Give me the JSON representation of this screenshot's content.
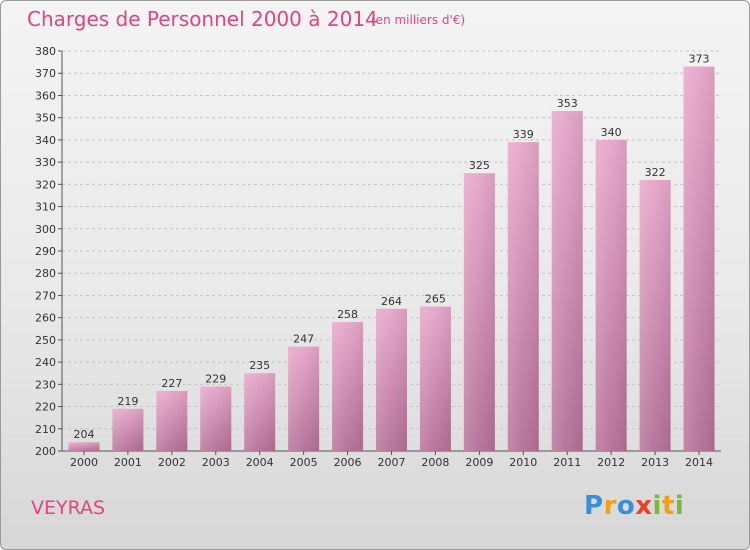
{
  "title": "Charges de Personnel 2000 à 2014",
  "subtitle": "(en milliers d'€)",
  "commune": "VEYRAS",
  "logo": {
    "letters": [
      "P",
      "r",
      "o",
      "x",
      "i",
      "t",
      "i"
    ],
    "colors": [
      "#3a8fd6",
      "#f0a01a",
      "#3a8fd6",
      "#e8412c",
      "#7ab843",
      "#f0a01a",
      "#7ab843"
    ]
  },
  "chart_data": {
    "type": "bar",
    "title": "Charges de Personnel 2000 à 2014",
    "subtitle": "(en milliers d'€)",
    "categories": [
      "2000",
      "2001",
      "2002",
      "2003",
      "2004",
      "2005",
      "2006",
      "2007",
      "2008",
      "2009",
      "2010",
      "2011",
      "2012",
      "2013",
      "2014"
    ],
    "values": [
      204,
      219,
      227,
      229,
      235,
      247,
      258,
      264,
      265,
      325,
      339,
      353,
      340,
      322,
      373
    ],
    "ylim": [
      200,
      380
    ],
    "yticks": [
      200,
      210,
      220,
      230,
      240,
      250,
      260,
      270,
      280,
      290,
      300,
      310,
      320,
      330,
      340,
      350,
      360,
      370,
      380
    ],
    "grid": true,
    "bar_color": "#d888b2"
  }
}
